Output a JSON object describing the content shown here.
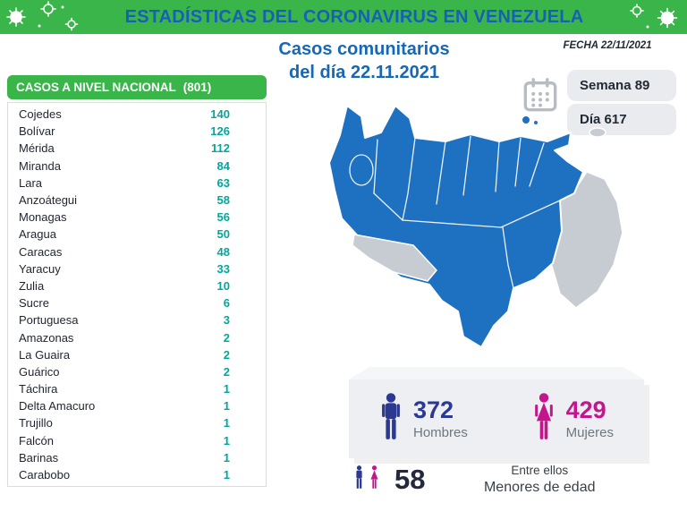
{
  "header": {
    "title": "ESTADÍSTICAS DEL CORONAVIRUS EN VENEZUELA"
  },
  "subtitle": {
    "line1": "Casos comunitarios",
    "line2": "del día 22.11.2021"
  },
  "date_panel": {
    "fecha": "FECHA 22/11/2021",
    "semana": "Semana 89",
    "dia": "Día 617"
  },
  "national_table": {
    "title": "CASOS A NIVEL NACIONAL",
    "total": "(801)",
    "rows": [
      {
        "name": "Cojedes",
        "value": 140
      },
      {
        "name": "Bolívar",
        "value": 126
      },
      {
        "name": "Mérida",
        "value": 112
      },
      {
        "name": "Miranda",
        "value": 84
      },
      {
        "name": "Lara",
        "value": 63
      },
      {
        "name": "Anzoátegui",
        "value": 58
      },
      {
        "name": "Monagas",
        "value": 56
      },
      {
        "name": "Aragua",
        "value": 50
      },
      {
        "name": "Caracas",
        "value": 48
      },
      {
        "name": "Yaracuy",
        "value": 33
      },
      {
        "name": "Zulia",
        "value": 10
      },
      {
        "name": "Sucre",
        "value": 6
      },
      {
        "name": "Portuguesa",
        "value": 3
      },
      {
        "name": "Amazonas",
        "value": 2
      },
      {
        "name": "La Guaira",
        "value": 2
      },
      {
        "name": "Guárico",
        "value": 2
      },
      {
        "name": "Táchira",
        "value": 1
      },
      {
        "name": "Delta Amacuro",
        "value": 1
      },
      {
        "name": "Trujillo",
        "value": 1
      },
      {
        "name": "Falcón",
        "value": 1
      },
      {
        "name": "Barinas",
        "value": 1
      },
      {
        "name": "Carabobo",
        "value": 1
      }
    ]
  },
  "summary": {
    "men": {
      "value": "372",
      "label": "Hombres"
    },
    "women": {
      "value": "429",
      "label": "Mujeres"
    },
    "minors": {
      "value": "58",
      "line1": "Entre ellos",
      "line2": "Menores de edad"
    }
  },
  "icons": {
    "virus": "coronavirus-icon",
    "calendar": "calendar-icon",
    "male": "male-pictogram-icon",
    "female": "female-pictogram-icon"
  },
  "colors": {
    "green": "#3ab54a",
    "title-blue": "#1661b8",
    "subtitle-blue": "#1668b5",
    "value-teal": "#00a79d",
    "map-blue": "#1e70c0",
    "map-gray": "#c7ccd2",
    "men-blue": "#2b3990",
    "women-pink": "#c4168c",
    "dark-text": "#222a35",
    "badge-bg": "#e9ebee",
    "card-bg": "#edeff2"
  },
  "chart_data": [
    {
      "type": "table",
      "title": "CASOS A NIVEL NACIONAL (801)",
      "categories": [
        "Cojedes",
        "Bolívar",
        "Mérida",
        "Miranda",
        "Lara",
        "Anzoátegui",
        "Monagas",
        "Aragua",
        "Caracas",
        "Yaracuy",
        "Zulia",
        "Sucre",
        "Portuguesa",
        "Amazonas",
        "La Guaira",
        "Guárico",
        "Táchira",
        "Delta Amacuro",
        "Trujillo",
        "Falcón",
        "Barinas",
        "Carabobo"
      ],
      "values": [
        140,
        126,
        112,
        84,
        63,
        58,
        56,
        50,
        48,
        33,
        10,
        6,
        3,
        2,
        2,
        2,
        1,
        1,
        1,
        1,
        1,
        1
      ],
      "total": 801
    },
    {
      "type": "table",
      "title": "Casos comunitarios del día 22.11.2021",
      "categories": [
        "Hombres",
        "Mujeres",
        "Menores de edad"
      ],
      "values": [
        372,
        429,
        58
      ],
      "note": "Entre ellos 58 menores de edad — FECHA 22/11/2021, Semana 89, Día 617"
    }
  ]
}
